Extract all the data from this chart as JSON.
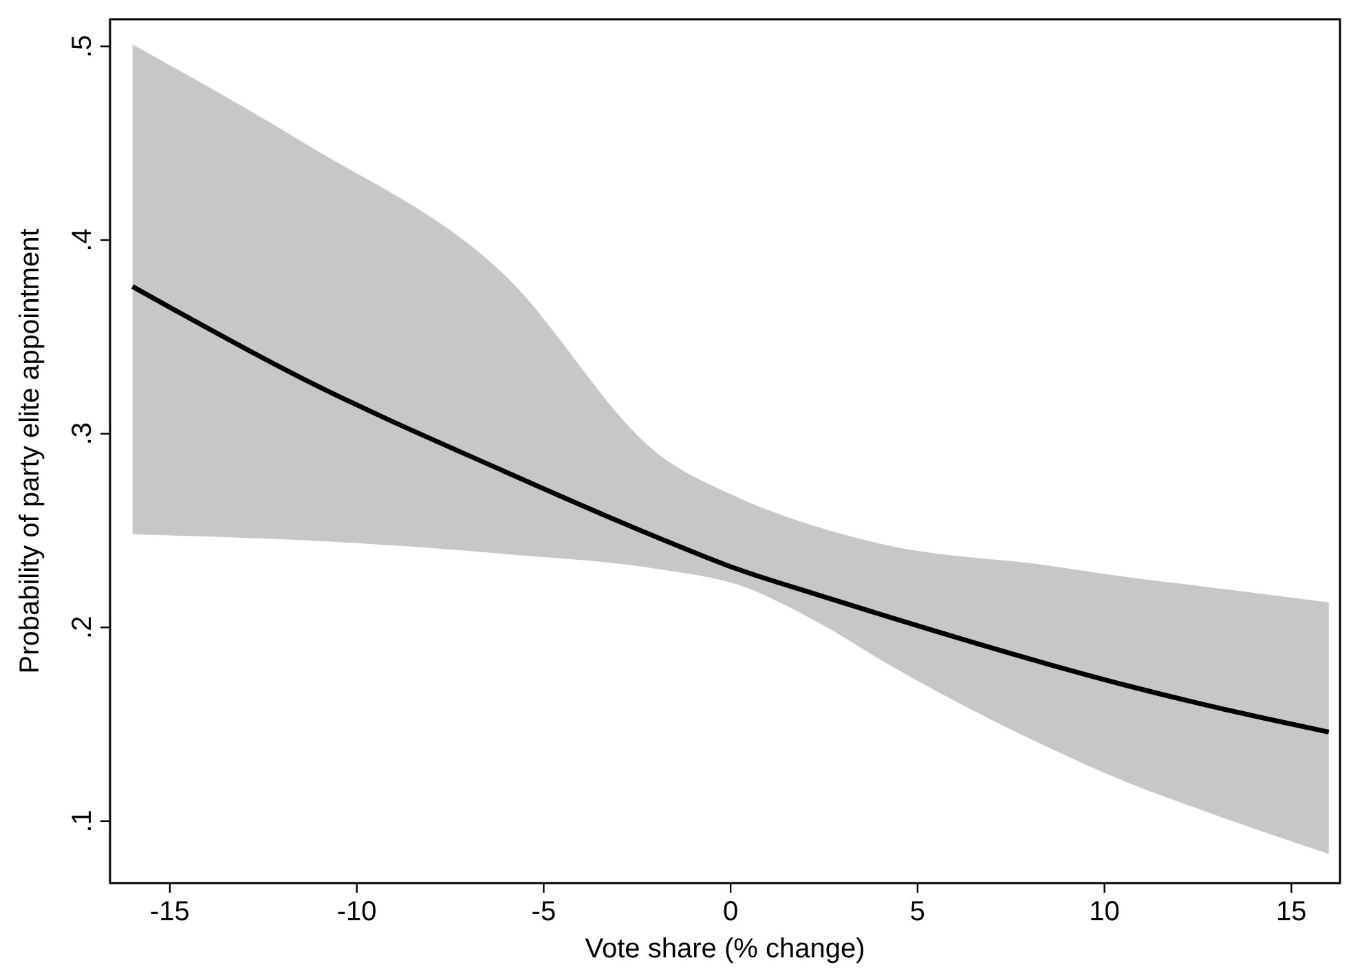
{
  "chart_data": {
    "type": "line",
    "xlabel": "Vote share (% change)",
    "ylabel": "Probability of party elite appointment",
    "x": [
      -16,
      -11.4,
      -6.1,
      -1.9,
      0.2,
      2.3,
      4.3,
      8.5,
      10.6,
      12.7,
      16
    ],
    "series": [
      {
        "color": "#000000",
        "values": [
          0.376,
          0.328,
          0.281,
          0.246,
          0.23,
          0.217,
          0.205,
          0.181,
          0.17,
          0.16,
          0.146
        ],
        "lower": [
          0.248,
          0.245,
          0.238,
          0.23,
          0.222,
          0.203,
          0.18,
          0.138,
          0.12,
          0.105,
          0.083
        ],
        "upper": [
          0.501,
          0.45,
          0.383,
          0.289,
          0.267,
          0.252,
          0.242,
          0.232,
          0.226,
          0.221,
          0.213
        ]
      }
    ],
    "xlim": [
      -16.6,
      16.3
    ],
    "xticks": [
      -15,
      -10,
      -5,
      0,
      5,
      10,
      15
    ],
    "ylim": [
      0.068,
      0.514
    ],
    "yticks": [
      {
        "value": 0.1,
        "label": ".1"
      },
      {
        "value": 0.2,
        "label": ".2"
      },
      {
        "value": 0.3,
        "label": ".3"
      },
      {
        "value": 0.4,
        "label": ".4"
      },
      {
        "value": 0.5,
        "label": ".5"
      }
    ],
    "grid": false,
    "marker": "none",
    "line_style": "solid"
  }
}
